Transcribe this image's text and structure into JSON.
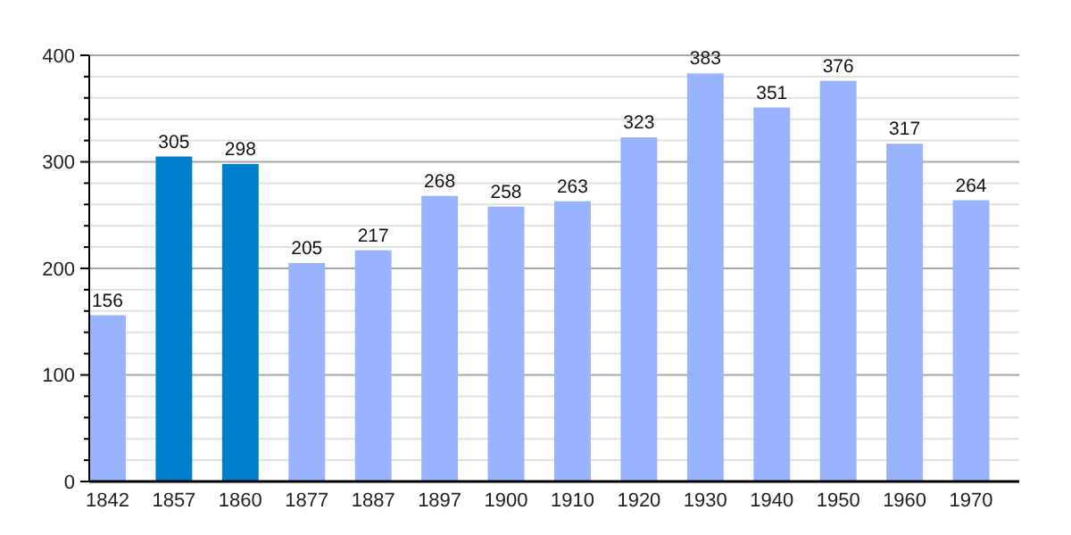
{
  "chart_data": {
    "type": "bar",
    "categories": [
      "1842",
      "1857",
      "1860",
      "1877",
      "1887",
      "1897",
      "1900",
      "1910",
      "1920",
      "1930",
      "1940",
      "1950",
      "1960",
      "1970"
    ],
    "values": [
      156,
      305,
      298,
      205,
      217,
      268,
      258,
      263,
      323,
      383,
      351,
      376,
      317,
      264
    ],
    "colors": [
      "#99b3ff",
      "#0080cc",
      "#0080cc",
      "#99b3ff",
      "#99b3ff",
      "#99b3ff",
      "#99b3ff",
      "#99b3ff",
      "#99b3ff",
      "#99b3ff",
      "#99b3ff",
      "#99b3ff",
      "#99b3ff",
      "#99b3ff"
    ],
    "ylim": [
      0,
      400
    ],
    "yticks": [
      0,
      {
        "value": 20,
        "label": null
      },
      {
        "value": 40,
        "label": null
      },
      {
        "value": 60,
        "label": null
      },
      {
        "value": 80,
        "label": null
      },
      100,
      {
        "value": 120,
        "label": null
      },
      {
        "value": 140,
        "label": null
      },
      {
        "value": 160,
        "label": null
      },
      {
        "value": 180,
        "label": null
      },
      200,
      {
        "value": 220,
        "label": null
      },
      {
        "value": 240,
        "label": null
      },
      {
        "value": 260,
        "label": null
      },
      {
        "value": 280,
        "label": null
      },
      300,
      {
        "value": 320,
        "label": null
      },
      {
        "value": 340,
        "label": null
      },
      {
        "value": 360,
        "label": null
      },
      {
        "value": 380,
        "label": null
      },
      400
    ],
    "grid": true,
    "data_labels": true
  }
}
